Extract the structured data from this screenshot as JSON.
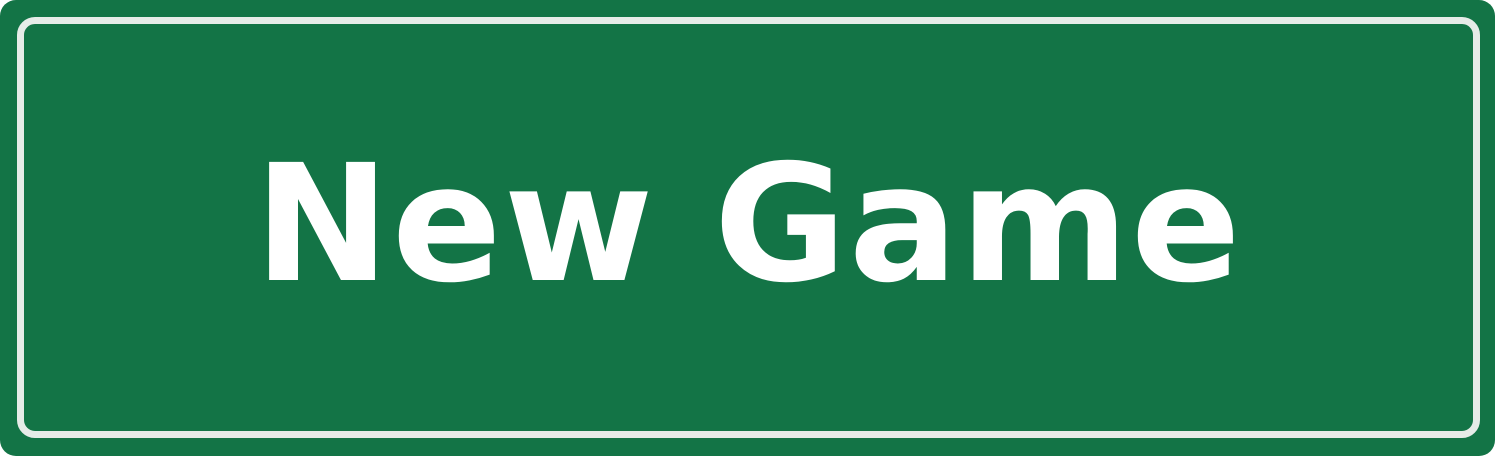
{
  "new_game_button": {
    "label": "New Game"
  },
  "colors": {
    "button_fill": "#137446",
    "inner_border": "#e6ece8",
    "label_text": "#ffffff"
  }
}
